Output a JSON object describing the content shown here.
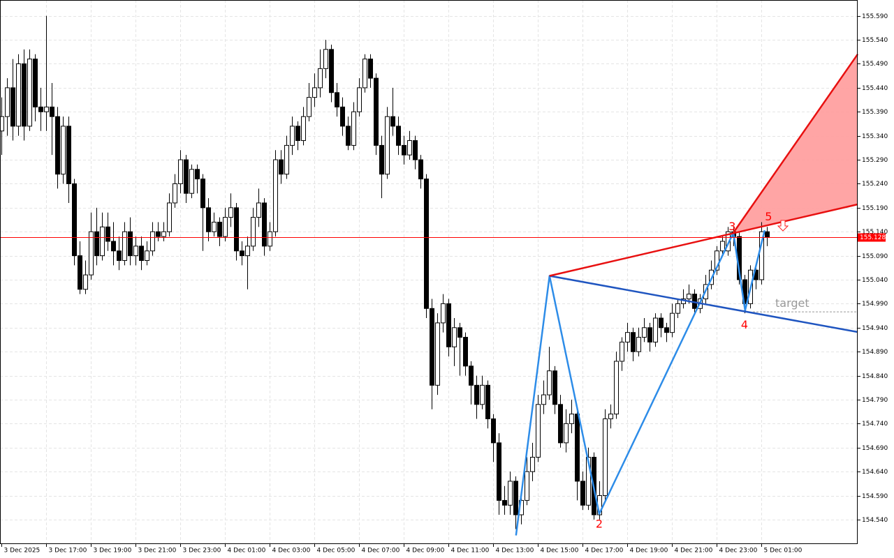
{
  "chart_data": {
    "type": "candlestick",
    "up_color": "#ffffff",
    "down_color": "#000000",
    "grid": true,
    "xlim": [
      -0.25,
      153.25
    ],
    "ylim": [
      154.489,
      155.623
    ],
    "xticks": [
      {
        "value": 0,
        "label": "3 Dec 2025"
      },
      {
        "value": 8,
        "label": "3 Dec 17:00"
      },
      {
        "value": 16,
        "label": "3 Dec 19:00"
      },
      {
        "value": 24,
        "label": "3 Dec 21:00"
      },
      {
        "value": 32,
        "label": "3 Dec 23:00"
      },
      {
        "value": 40,
        "label": "4 Dec 01:00"
      },
      {
        "value": 48,
        "label": "4 Dec 03:00"
      },
      {
        "value": 56,
        "label": "4 Dec 05:00"
      },
      {
        "value": 64,
        "label": "4 Dec 07:00"
      },
      {
        "value": 72,
        "label": "4 Dec 09:00"
      },
      {
        "value": 80,
        "label": "4 Dec 11:00"
      },
      {
        "value": 88,
        "label": "4 Dec 13:00"
      },
      {
        "value": 96,
        "label": "4 Dec 15:00"
      },
      {
        "value": 104,
        "label": "4 Dec 17:00"
      },
      {
        "value": 112,
        "label": "4 Dec 19:00"
      },
      {
        "value": 120,
        "label": "4 Dec 21:00"
      },
      {
        "value": 128,
        "label": "4 Dec 23:00"
      },
      {
        "value": 136,
        "label": "5 Dec 01:00"
      }
    ],
    "yticks": [
      {
        "value": 155.59,
        "label": "155.590"
      },
      {
        "value": 155.54,
        "label": "155.540"
      },
      {
        "value": 155.49,
        "label": "155.490"
      },
      {
        "value": 155.44,
        "label": "155.440"
      },
      {
        "value": 155.39,
        "label": "155.390"
      },
      {
        "value": 155.34,
        "label": "155.340"
      },
      {
        "value": 155.29,
        "label": "155.290"
      },
      {
        "value": 155.24,
        "label": "155.240"
      },
      {
        "value": 155.19,
        "label": "155.190"
      },
      {
        "value": 155.14,
        "label": "155.140"
      },
      {
        "value": 155.09,
        "label": "155.090"
      },
      {
        "value": 155.04,
        "label": "155.040"
      },
      {
        "value": 154.99,
        "label": "154.990"
      },
      {
        "value": 154.94,
        "label": "154.940"
      },
      {
        "value": 154.89,
        "label": "154.890"
      },
      {
        "value": 154.84,
        "label": "154.840"
      },
      {
        "value": 154.79,
        "label": "154.790"
      },
      {
        "value": 154.74,
        "label": "154.740"
      },
      {
        "value": 154.69,
        "label": "154.690"
      },
      {
        "value": 154.64,
        "label": "154.640"
      },
      {
        "value": 154.59,
        "label": "154.590"
      },
      {
        "value": 154.54,
        "label": "154.540"
      }
    ],
    "current_price": 155.128,
    "current_price_color": "#ff0000",
    "candles": [
      [
        155.35,
        155.42,
        155.3,
        155.38
      ],
      [
        155.38,
        155.46,
        155.34,
        155.44
      ],
      [
        155.44,
        155.5,
        155.33,
        155.36
      ],
      [
        155.36,
        155.51,
        155.34,
        155.49
      ],
      [
        155.49,
        155.52,
        155.33,
        155.36
      ],
      [
        155.36,
        155.52,
        155.35,
        155.5
      ],
      [
        155.5,
        155.51,
        155.37,
        155.4
      ],
      [
        155.4,
        155.44,
        155.35,
        155.39
      ],
      [
        155.39,
        155.59,
        155.35,
        155.4
      ],
      [
        155.4,
        155.45,
        155.3,
        155.38
      ],
      [
        155.38,
        155.4,
        155.23,
        155.26
      ],
      [
        155.26,
        155.38,
        155.24,
        155.36
      ],
      [
        155.36,
        155.38,
        155.2,
        155.24
      ],
      [
        155.24,
        155.25,
        155.07,
        155.09
      ],
      [
        155.09,
        155.12,
        155.01,
        155.02
      ],
      [
        155.02,
        155.08,
        155.01,
        155.05
      ],
      [
        155.05,
        155.18,
        155.04,
        155.14
      ],
      [
        155.14,
        155.19,
        155.07,
        155.09
      ],
      [
        155.09,
        155.18,
        155.08,
        155.15
      ],
      [
        155.15,
        155.18,
        155.1,
        155.12
      ],
      [
        155.12,
        155.16,
        155.07,
        155.1
      ],
      [
        155.1,
        155.13,
        155.06,
        155.08
      ],
      [
        155.08,
        155.16,
        155.07,
        155.14
      ],
      [
        155.14,
        155.17,
        155.07,
        155.09
      ],
      [
        155.09,
        155.13,
        155.07,
        155.11
      ],
      [
        155.11,
        155.13,
        155.06,
        155.08
      ],
      [
        155.08,
        155.12,
        155.07,
        155.1
      ],
      [
        155.1,
        155.16,
        155.09,
        155.14
      ],
      [
        155.14,
        155.16,
        155.12,
        155.13
      ],
      [
        155.13,
        155.16,
        155.12,
        155.14
      ],
      [
        155.14,
        155.22,
        155.13,
        155.2
      ],
      [
        155.2,
        155.26,
        155.19,
        155.24
      ],
      [
        155.24,
        155.31,
        155.22,
        155.29
      ],
      [
        155.29,
        155.3,
        155.2,
        155.22
      ],
      [
        155.22,
        155.28,
        155.21,
        155.27
      ],
      [
        155.27,
        155.28,
        155.22,
        155.25
      ],
      [
        155.25,
        155.26,
        155.1,
        155.19
      ],
      [
        155.19,
        155.21,
        155.12,
        155.14
      ],
      [
        155.14,
        155.18,
        155.13,
        155.16
      ],
      [
        155.16,
        155.17,
        155.11,
        155.13
      ],
      [
        155.13,
        155.19,
        155.12,
        155.17
      ],
      [
        155.17,
        155.22,
        155.15,
        155.19
      ],
      [
        155.19,
        155.2,
        155.08,
        155.1
      ],
      [
        155.1,
        155.12,
        155.07,
        155.09
      ],
      [
        155.09,
        155.13,
        155.02,
        155.11
      ],
      [
        155.11,
        155.19,
        155.1,
        155.17
      ],
      [
        155.17,
        155.23,
        155.15,
        155.2
      ],
      [
        155.2,
        155.21,
        155.09,
        155.11
      ],
      [
        155.11,
        155.16,
        155.1,
        155.14
      ],
      [
        155.14,
        155.31,
        155.13,
        155.29
      ],
      [
        155.29,
        155.31,
        155.24,
        155.26
      ],
      [
        155.26,
        155.34,
        155.25,
        155.32
      ],
      [
        155.32,
        155.38,
        155.3,
        155.36
      ],
      [
        155.36,
        155.37,
        155.31,
        155.33
      ],
      [
        155.33,
        155.4,
        155.32,
        155.38
      ],
      [
        155.38,
        155.45,
        155.37,
        155.42
      ],
      [
        155.42,
        155.47,
        155.4,
        155.44
      ],
      [
        155.44,
        155.52,
        155.42,
        155.48
      ],
      [
        155.48,
        155.54,
        155.46,
        155.52
      ],
      [
        155.52,
        155.53,
        155.41,
        155.43
      ],
      [
        155.43,
        155.45,
        155.38,
        155.4
      ],
      [
        155.4,
        155.42,
        155.34,
        155.36
      ],
      [
        155.36,
        155.38,
        155.31,
        155.32
      ],
      [
        155.32,
        155.41,
        155.31,
        155.39
      ],
      [
        155.39,
        155.46,
        155.38,
        155.44
      ],
      [
        155.44,
        155.51,
        155.43,
        155.5
      ],
      [
        155.5,
        155.51,
        155.44,
        155.46
      ],
      [
        155.46,
        155.47,
        155.3,
        155.32
      ],
      [
        155.32,
        155.34,
        155.21,
        155.26
      ],
      [
        155.26,
        155.4,
        155.25,
        155.38
      ],
      [
        155.38,
        155.44,
        155.34,
        155.36
      ],
      [
        155.36,
        155.38,
        155.3,
        155.32
      ],
      [
        155.32,
        155.34,
        155.28,
        155.3
      ],
      [
        155.3,
        155.35,
        155.29,
        155.33
      ],
      [
        155.33,
        155.34,
        155.27,
        155.29
      ],
      [
        155.29,
        155.3,
        155.23,
        155.25
      ],
      [
        155.25,
        155.26,
        154.96,
        154.98
      ],
      [
        154.98,
        155.0,
        154.77,
        154.82
      ],
      [
        154.82,
        154.97,
        154.8,
        154.95
      ],
      [
        154.95,
        155.01,
        154.93,
        154.99
      ],
      [
        154.99,
        155.0,
        154.88,
        154.9
      ],
      [
        154.9,
        154.96,
        154.86,
        154.94
      ],
      [
        154.94,
        154.95,
        154.84,
        154.92
      ],
      [
        154.92,
        154.93,
        154.84,
        154.86
      ],
      [
        154.86,
        154.87,
        154.78,
        154.82
      ],
      [
        154.82,
        154.84,
        154.75,
        154.78
      ],
      [
        154.78,
        154.84,
        154.77,
        154.82
      ],
      [
        154.82,
        154.83,
        154.73,
        154.75
      ],
      [
        154.75,
        154.76,
        154.66,
        154.7
      ],
      [
        154.7,
        154.72,
        154.55,
        154.58
      ],
      [
        154.58,
        154.61,
        154.55,
        154.57
      ],
      [
        154.57,
        154.64,
        154.55,
        154.62
      ],
      [
        154.62,
        154.63,
        154.52,
        154.55
      ],
      [
        154.55,
        154.6,
        154.53,
        154.58
      ],
      [
        154.58,
        154.67,
        154.57,
        154.64
      ],
      [
        154.64,
        154.7,
        154.62,
        154.67
      ],
      [
        154.67,
        154.8,
        154.66,
        154.78
      ],
      [
        154.78,
        154.83,
        154.76,
        154.8
      ],
      [
        154.8,
        154.9,
        154.79,
        154.85
      ],
      [
        154.85,
        154.86,
        154.76,
        154.78
      ],
      [
        154.78,
        154.8,
        154.69,
        154.7
      ],
      [
        154.7,
        154.77,
        154.68,
        154.74
      ],
      [
        154.74,
        154.79,
        154.72,
        154.76
      ],
      [
        154.76,
        154.77,
        154.58,
        154.62
      ],
      [
        154.62,
        154.64,
        154.56,
        154.57
      ],
      [
        154.57,
        154.69,
        154.56,
        154.67
      ],
      [
        154.67,
        154.68,
        154.54,
        154.55
      ],
      [
        154.55,
        154.62,
        154.54,
        154.59
      ],
      [
        154.59,
        154.77,
        154.58,
        154.75
      ],
      [
        154.75,
        154.78,
        154.73,
        154.76
      ],
      [
        154.76,
        154.89,
        154.75,
        154.87
      ],
      [
        154.87,
        154.92,
        154.85,
        154.91
      ],
      [
        154.91,
        154.95,
        154.89,
        154.93
      ],
      [
        154.93,
        154.94,
        154.87,
        154.89
      ],
      [
        154.89,
        154.94,
        154.88,
        154.92
      ],
      [
        154.92,
        154.96,
        154.91,
        154.94
      ],
      [
        154.94,
        154.95,
        154.89,
        154.91
      ],
      [
        154.91,
        154.97,
        154.9,
        154.96
      ],
      [
        154.96,
        154.97,
        154.92,
        154.94
      ],
      [
        154.94,
        154.95,
        154.91,
        154.93
      ],
      [
        154.93,
        154.99,
        154.92,
        154.97
      ],
      [
        154.97,
        155.0,
        154.96,
        154.99
      ],
      [
        154.99,
        155.02,
        154.98,
        155.0
      ],
      [
        155.0,
        155.03,
        154.99,
        155.01
      ],
      [
        155.01,
        155.02,
        154.97,
        154.98
      ],
      [
        154.98,
        155.01,
        154.97,
        155.0
      ],
      [
        155.0,
        155.05,
        154.99,
        155.03
      ],
      [
        155.03,
        155.08,
        155.02,
        155.06
      ],
      [
        155.06,
        155.11,
        155.05,
        155.1
      ],
      [
        155.1,
        155.13,
        155.09,
        155.12
      ],
      [
        155.1,
        155.15,
        155.09,
        155.14
      ],
      [
        155.14,
        155.15,
        155.11,
        155.13
      ],
      [
        155.13,
        155.14,
        155.03,
        155.04
      ],
      [
        155.04,
        155.05,
        154.97,
        154.99
      ],
      [
        154.99,
        155.07,
        154.98,
        155.06
      ],
      [
        155.06,
        155.07,
        155.02,
        155.04
      ],
      [
        155.04,
        155.16,
        155.03,
        155.14
      ],
      [
        155.14,
        155.15,
        155.11,
        155.128
      ]
    ],
    "area": {
      "color": "#ff9b9b",
      "points": [
        [
          131,
          155.138
        ],
        [
          153.25,
          155.51
        ],
        [
          153.25,
          155.197
        ]
      ]
    },
    "lines": [
      {
        "color": "#2d8ce8",
        "width": 2.5,
        "points": [
          [
            92.1,
            154.507
          ],
          [
            98.1,
            155.048
          ],
          [
            107,
            154.552
          ],
          [
            131,
            155.138
          ],
          [
            133.1,
            154.976
          ],
          [
            136.6,
            155.143
          ]
        ]
      },
      {
        "color": "#1f55c0",
        "width": 2.5,
        "points": [
          [
            98.1,
            155.048
          ],
          [
            153.25,
            154.931
          ]
        ]
      },
      {
        "color": "#e81010",
        "width": 2.5,
        "points": [
          [
            98.1,
            155.048
          ],
          [
            153.25,
            155.197
          ]
        ]
      },
      {
        "color": "#e81010",
        "width": 2.5,
        "points": [
          [
            131,
            155.138
          ],
          [
            153.25,
            155.51
          ]
        ]
      }
    ],
    "target_line": {
      "color": "#999999",
      "points": [
        [
          134.5,
          154.973
        ],
        [
          153.25,
          154.973
        ]
      ]
    },
    "labels": [
      {
        "text": "2",
        "color": "#ff0000",
        "x": 107,
        "y": 154.53
      },
      {
        "text": "3",
        "color": "#ff0000",
        "x": 130.8,
        "y": 155.15
      },
      {
        "text": "4",
        "color": "#ff0000",
        "x": 133,
        "y": 154.945
      },
      {
        "text": "5",
        "color": "#ff0000",
        "x": 137.3,
        "y": 155.17
      },
      {
        "text": "target",
        "color": "#999999",
        "x": 138.5,
        "y": 154.99
      }
    ]
  }
}
